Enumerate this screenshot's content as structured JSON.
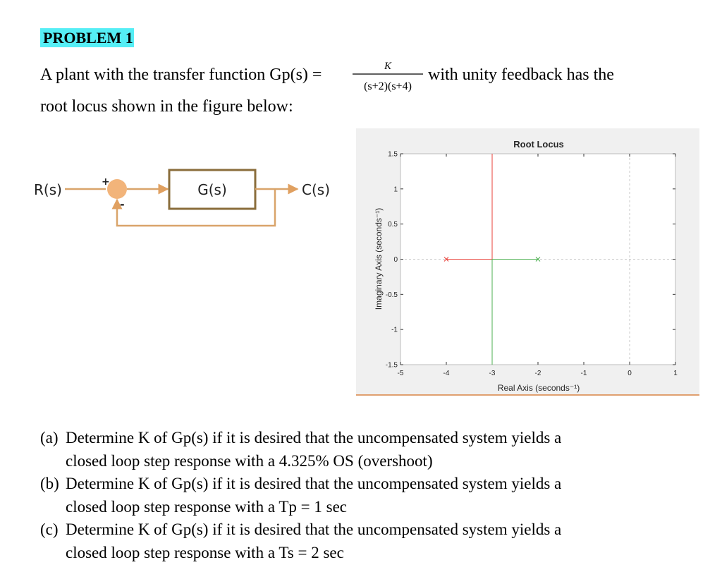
{
  "header": {
    "title": "PROBLEM 1"
  },
  "intro": {
    "before": "A plant with the transfer function Gp(s) =",
    "numerator": "K",
    "denominator": "(s+2)(s+4)",
    "after": "with unity feedback has the",
    "line2": "root locus shown in the figure below:"
  },
  "diagram": {
    "input": "R(s)",
    "plus": "+",
    "minus": "-",
    "block": "G(s)",
    "output": "C(s)"
  },
  "chart_data": {
    "type": "line",
    "title": "Root Locus",
    "x_label": "Real Axis (seconds⁻¹)",
    "y_label": "Imaginary Axis (seconds⁻¹)",
    "xlim": [
      -5,
      1
    ],
    "ylim": [
      -1.5,
      1.5
    ],
    "xticks": [
      -5,
      -4,
      -3,
      -2,
      -1,
      0,
      1
    ],
    "yticks": [
      -1.5,
      -1,
      -0.5,
      0,
      0.5,
      1,
      1.5
    ],
    "series": [
      {
        "color": "#e8413a",
        "x": [
          -4,
          -3,
          -3
        ],
        "values": [
          0,
          0,
          1.5
        ]
      },
      {
        "color": "#4caf50",
        "x": [
          -2,
          -3,
          -3
        ],
        "values": [
          0,
          0,
          -1.5
        ]
      }
    ]
  },
  "questions": [
    {
      "label": "(a)",
      "lines": [
        "Determine K of Gp(s) if it is desired that the uncompensated system yields a",
        "closed loop step response with a 4.325% OS (overshoot)"
      ]
    },
    {
      "label": "(b)",
      "lines": [
        "Determine K of Gp(s) if it is desired that the uncompensated system yields a",
        "closed loop step response with a Tp = 1 sec"
      ]
    },
    {
      "label": "(c)",
      "lines": [
        "Determine K of Gp(s) if it is desired that the uncompensated system yields a",
        "closed loop step response with a Ts = 2 sec"
      ]
    }
  ]
}
